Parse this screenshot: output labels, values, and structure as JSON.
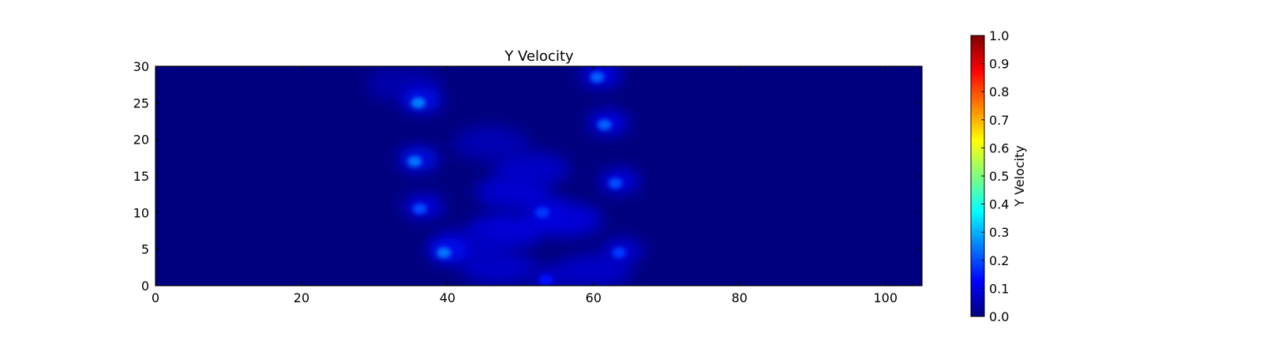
{
  "chart_data": {
    "type": "heatmap",
    "title": "Y Velocity",
    "xlabel": "",
    "ylabel": "",
    "xlim": [
      0,
      105
    ],
    "ylim": [
      0,
      30
    ],
    "x_ticks": [
      0,
      20,
      40,
      60,
      80,
      100
    ],
    "y_ticks": [
      0,
      5,
      10,
      15,
      20,
      25,
      30
    ],
    "grid": false,
    "colormap": "jet",
    "colormap_stops": [
      "#00007f",
      "#0000ff",
      "#007fff",
      "#00ffff",
      "#7fff7f",
      "#ffff00",
      "#ff7f00",
      "#ff0000",
      "#7f0000"
    ],
    "background_value": 0.0,
    "colorbar": {
      "label": "Y Velocity",
      "range": [
        0,
        1
      ],
      "ticks": [
        "0.0",
        "0.1",
        "0.2",
        "0.3",
        "0.4",
        "0.5",
        "0.6",
        "0.7",
        "0.8",
        "0.9",
        "1.0"
      ]
    },
    "hotspots": [
      {
        "x": 36.0,
        "y": 25.0,
        "value": 0.25
      },
      {
        "x": 35.5,
        "y": 17.0,
        "value": 0.24
      },
      {
        "x": 36.2,
        "y": 10.5,
        "value": 0.2
      },
      {
        "x": 39.5,
        "y": 4.5,
        "value": 0.24
      },
      {
        "x": 60.5,
        "y": 28.5,
        "value": 0.22
      },
      {
        "x": 61.5,
        "y": 22.0,
        "value": 0.22
      },
      {
        "x": 63.0,
        "y": 14.0,
        "value": 0.2
      },
      {
        "x": 63.5,
        "y": 4.5,
        "value": 0.18
      },
      {
        "x": 53.0,
        "y": 10.0,
        "value": 0.18
      },
      {
        "x": 53.5,
        "y": 0.8,
        "value": 0.14
      }
    ],
    "diffuse_regions": [
      {
        "x": 49.0,
        "y": 12.8,
        "value": 0.09
      },
      {
        "x": 51.5,
        "y": 16.0,
        "value": 0.08
      },
      {
        "x": 46.0,
        "y": 19.5,
        "value": 0.06
      },
      {
        "x": 48.0,
        "y": 7.5,
        "value": 0.1
      },
      {
        "x": 56.0,
        "y": 9.0,
        "value": 0.1
      },
      {
        "x": 47.0,
        "y": 2.5,
        "value": 0.08
      },
      {
        "x": 60.0,
        "y": 2.0,
        "value": 0.08
      },
      {
        "x": 43.0,
        "y": 5.5,
        "value": 0.07
      },
      {
        "x": 34.0,
        "y": 27.5,
        "value": 0.05
      }
    ]
  }
}
